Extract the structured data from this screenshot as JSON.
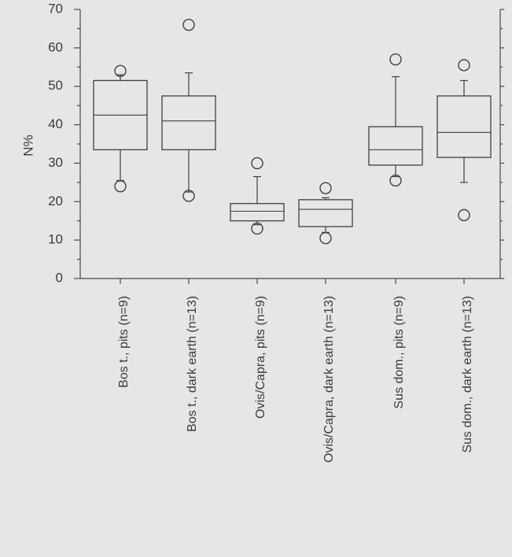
{
  "chart_data": {
    "type": "boxplot",
    "title": "",
    "xlabel": "",
    "ylabel": "N%",
    "ylim": [
      0,
      70
    ],
    "yticks": [
      0,
      10,
      20,
      30,
      40,
      50,
      60,
      70
    ],
    "grid": false,
    "categories": [
      "Bos t., pits (n=9)",
      "Bos t., dark earth (n=13)",
      "Ovis/Capra, pits (n=9)",
      "Ovis/Capra, dark earth (n=13)",
      "Sus dom., pits (n=9)",
      "Sus dom., dark earth (n=13)"
    ],
    "boxes": [
      {
        "whisker_low": 25.5,
        "q1": 33.5,
        "median": 42.5,
        "q3": 51.5,
        "whisker_high": 53,
        "outliers": [
          24,
          54
        ]
      },
      {
        "whisker_low": 22.5,
        "q1": 33.5,
        "median": 41,
        "q3": 47.5,
        "whisker_high": 53.5,
        "outliers": [
          21.5,
          66
        ]
      },
      {
        "whisker_low": 14,
        "q1": 15,
        "median": 17.5,
        "q3": 19.5,
        "whisker_high": 26.5,
        "outliers": [
          13,
          30
        ]
      },
      {
        "whisker_low": 12,
        "q1": 13.5,
        "median": 18,
        "q3": 20.5,
        "whisker_high": 21,
        "outliers": [
          10.5,
          23.5
        ]
      },
      {
        "whisker_low": 26.5,
        "q1": 29.5,
        "median": 33.5,
        "q3": 39.5,
        "whisker_high": 52.5,
        "outliers": [
          25.5,
          57
        ]
      },
      {
        "whisker_low": 25,
        "q1": 31.5,
        "median": 38,
        "q3": 47.5,
        "whisker_high": 51.5,
        "outliers": [
          16.5,
          55.5
        ]
      }
    ]
  }
}
